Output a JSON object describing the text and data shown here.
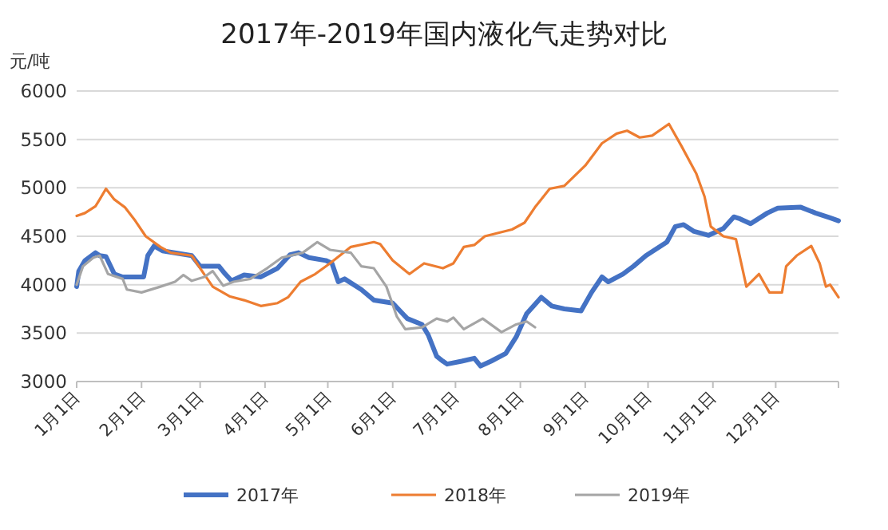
{
  "chart_data": {
    "type": "line",
    "title": "2017年-2019年国内液化气走势对比",
    "ylabel": "元/吨",
    "xlim": [
      "--01-01",
      "--12-31"
    ],
    "xticks": [
      {
        "value": "--01-01",
        "label": "1月1日"
      },
      {
        "value": "--02-01",
        "label": "2月1日"
      },
      {
        "value": "--03-01",
        "label": "3月1日"
      },
      {
        "value": "--04-01",
        "label": "4月1日"
      },
      {
        "value": "--05-01",
        "label": "5月1日"
      },
      {
        "value": "--06-01",
        "label": "6月1日"
      },
      {
        "value": "--07-01",
        "label": "7月1日"
      },
      {
        "value": "--08-01",
        "label": "8月1日"
      },
      {
        "value": "--09-01",
        "label": "9月1日"
      },
      {
        "value": "--10-01",
        "label": "10月1日"
      },
      {
        "value": "--11-01",
        "label": "11月1日"
      },
      {
        "value": "--12-01",
        "label": "12月1日"
      },
      {
        "value": "--12-31",
        "label": null
      }
    ],
    "ylim": [
      3000,
      6000
    ],
    "yticks": [
      3000,
      3500,
      4000,
      4500,
      5000,
      5500,
      6000
    ],
    "grid": "y",
    "legend": "bottom",
    "marker": "none",
    "line_style": "solid",
    "series": [
      {
        "name": "2017年",
        "color": "#4472c4",
        "x": [
          "--01-01",
          "--01-02",
          "--01-05",
          "--01-10",
          "--01-12",
          "--01-15",
          "--01-19",
          "--01-23",
          "--02-02",
          "--02-04",
          "--02-07",
          "--02-11",
          "--02-25",
          "--03-01",
          "--03-10",
          "--03-13",
          "--03-16",
          "--03-22",
          "--03-30",
          "--04-07",
          "--04-13",
          "--04-17",
          "--04-22",
          "--04-30",
          "--05-03",
          "--05-06",
          "--05-09",
          "--05-17",
          "--05-23",
          "--06-01",
          "--06-08",
          "--06-15",
          "--06-18",
          "--06-22",
          "--06-25",
          "--06-27",
          "--07-04",
          "--07-10",
          "--07-13",
          "--07-18",
          "--07-25",
          "--07-30",
          "--08-04",
          "--08-11",
          "--08-16",
          "--08-22",
          "--08-30",
          "--09-04",
          "--09-09",
          "--09-12",
          "--09-19",
          "--09-24",
          "--09-30",
          "--10-10",
          "--10-14",
          "--10-18",
          "--10-23",
          "--10-30",
          "--11-06",
          "--11-11",
          "--11-14",
          "--11-19",
          "--11-27",
          "--12-02",
          "--12-13",
          "--12-20",
          "--12-27",
          "--12-31"
        ],
        "values": [
          3980,
          4140,
          4250,
          4330,
          4300,
          4290,
          4110,
          4080,
          4080,
          4300,
          4400,
          4350,
          4300,
          4190,
          4190,
          4110,
          4040,
          4100,
          4080,
          4170,
          4310,
          4330,
          4280,
          4250,
          4220,
          4030,
          4060,
          3950,
          3840,
          3810,
          3650,
          3590,
          3480,
          3260,
          3210,
          3180,
          3210,
          3240,
          3160,
          3210,
          3290,
          3460,
          3700,
          3870,
          3780,
          3750,
          3730,
          3920,
          4080,
          4030,
          4110,
          4190,
          4300,
          4440,
          4600,
          4620,
          4550,
          4510,
          4580,
          4700,
          4680,
          4630,
          4740,
          4790,
          4800,
          4740,
          4690,
          4660
        ]
      },
      {
        "name": "2018年",
        "color": "#ed7d31",
        "x": [
          "--01-01",
          "--01-05",
          "--01-10",
          "--01-12",
          "--01-15",
          "--01-19",
          "--01-24",
          "--01-29",
          "--02-03",
          "--02-10",
          "--02-15",
          "--02-25",
          "--03-01",
          "--03-07",
          "--03-15",
          "--03-22",
          "--03-30",
          "--04-07",
          "--04-12",
          "--04-18",
          "--04-25",
          "--05-02",
          "--05-12",
          "--05-23",
          "--05-26",
          "--06-01",
          "--06-09",
          "--06-16",
          "--06-25",
          "--06-30",
          "--07-05",
          "--07-10",
          "--07-15",
          "--07-28",
          "--08-03",
          "--08-08",
          "--08-15",
          "--08-22",
          "--09-01",
          "--09-09",
          "--09-16",
          "--09-21",
          "--09-27",
          "--10-03",
          "--10-11",
          "--10-17",
          "--10-24",
          "--10-28",
          "--10-31",
          "--11-06",
          "--11-12",
          "--11-17",
          "--11-23",
          "--11-28",
          "--12-04",
          "--12-06",
          "--12-11",
          "--12-18",
          "--12-22",
          "--12-25",
          "--12-27",
          "--12-31"
        ],
        "values": [
          4710,
          4740,
          4810,
          4880,
          4990,
          4880,
          4800,
          4660,
          4500,
          4390,
          4330,
          4300,
          4170,
          3980,
          3880,
          3840,
          3780,
          3810,
          3870,
          4030,
          4110,
          4220,
          4390,
          4440,
          4420,
          4250,
          4110,
          4220,
          4170,
          4220,
          4390,
          4410,
          4500,
          4570,
          4640,
          4800,
          4990,
          5020,
          5230,
          5460,
          5560,
          5590,
          5520,
          5540,
          5660,
          5430,
          5150,
          4910,
          4600,
          4500,
          4470,
          3980,
          4110,
          3920,
          3920,
          4190,
          4300,
          4400,
          4220,
          3980,
          4000,
          3870
        ]
      },
      {
        "name": "2019年",
        "color": "#a5a5a5",
        "x": [
          "--01-01",
          "--01-04",
          "--01-09",
          "--01-12",
          "--01-16",
          "--01-23",
          "--01-25",
          "--02-01",
          "--02-10",
          "--02-17",
          "--02-21",
          "--02-25",
          "--03-03",
          "--03-07",
          "--03-12",
          "--03-17",
          "--03-25",
          "--04-02",
          "--04-09",
          "--04-19",
          "--04-26",
          "--05-02",
          "--05-12",
          "--05-17",
          "--05-23",
          "--05-29",
          "--06-03",
          "--06-07",
          "--06-15",
          "--06-22",
          "--06-27",
          "--06-30",
          "--07-05",
          "--07-14",
          "--07-23",
          "--07-30",
          "--08-04",
          "--08-08"
        ],
        "values": [
          4000,
          4190,
          4280,
          4300,
          4110,
          4060,
          3950,
          3920,
          3980,
          4030,
          4100,
          4040,
          4080,
          4140,
          3990,
          4030,
          4060,
          4170,
          4280,
          4330,
          4440,
          4360,
          4330,
          4190,
          4170,
          3980,
          3670,
          3540,
          3560,
          3650,
          3620,
          3660,
          3540,
          3650,
          3510,
          3590,
          3620,
          3560
        ]
      }
    ]
  }
}
